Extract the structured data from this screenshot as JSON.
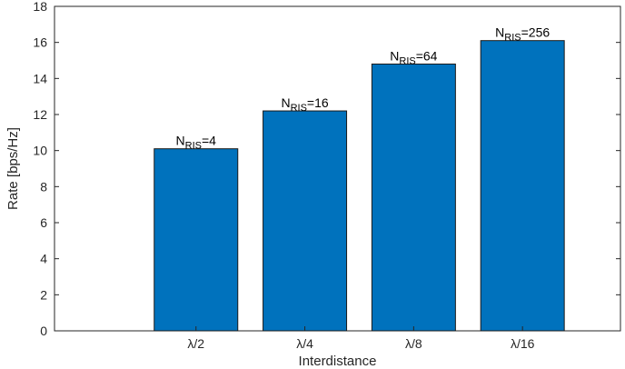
{
  "chart_data": {
    "type": "bar",
    "categories": [
      "λ/2",
      "λ/4",
      "λ/8",
      "λ/16"
    ],
    "values": [
      10.1,
      12.2,
      14.8,
      16.1
    ],
    "bar_labels": [
      {
        "base": "N",
        "sub": "RIS",
        "suffix": "=4"
      },
      {
        "base": "N",
        "sub": "RIS",
        "suffix": "=16"
      },
      {
        "base": "N",
        "sub": "RIS",
        "suffix": "=64"
      },
      {
        "base": "N",
        "sub": "RIS",
        "suffix": "=256"
      }
    ],
    "title": "",
    "xlabel": "Interdistance",
    "ylabel": "Rate [bps/Hz]",
    "ylim": [
      0,
      18
    ],
    "yticks": [
      0,
      2,
      4,
      6,
      8,
      10,
      12,
      14,
      16,
      18
    ],
    "grid": false,
    "legend": "none",
    "colors": {
      "bar_fill": "#0072bd",
      "bar_edge": "#1a1a1a",
      "axis": "#262626"
    }
  }
}
